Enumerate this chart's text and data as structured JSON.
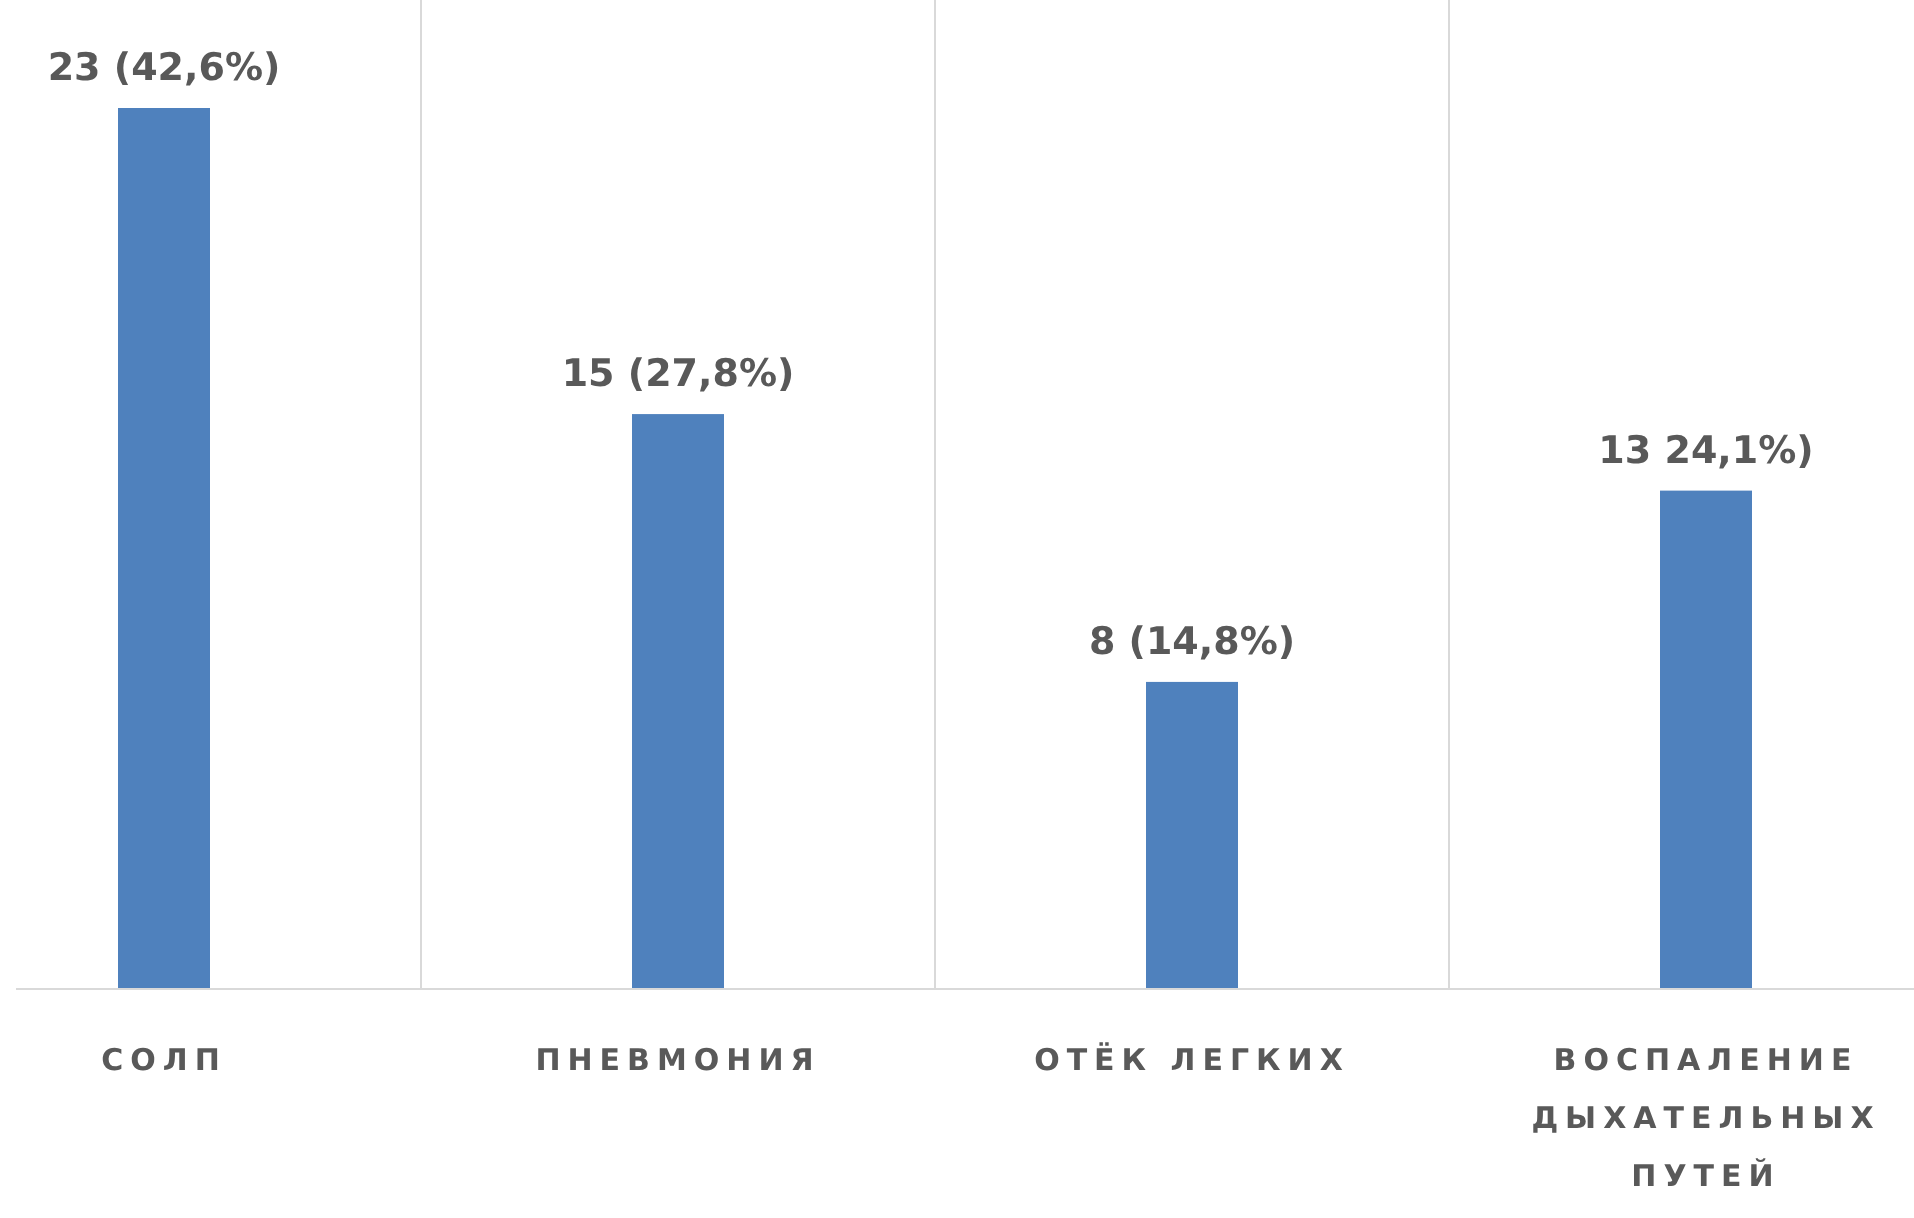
{
  "chart_data": {
    "type": "bar",
    "categories": [
      "СОЛП",
      "ПНЕВМОНИЯ",
      "ОТЁК ЛЕГКИХ",
      "ВОСПАЛЕНИЕ ДЫХАТЕЛЬНЫХ ПУТЕЙ"
    ],
    "values": [
      23,
      15,
      8,
      13
    ],
    "color": "#4f81bd",
    "value_labels": [
      "23 (42,6%)",
      "15 (27,8%)",
      "8 (14,8%)",
      "13 24,1%)"
    ],
    "grid": "x",
    "tick_labels": "x"
  }
}
